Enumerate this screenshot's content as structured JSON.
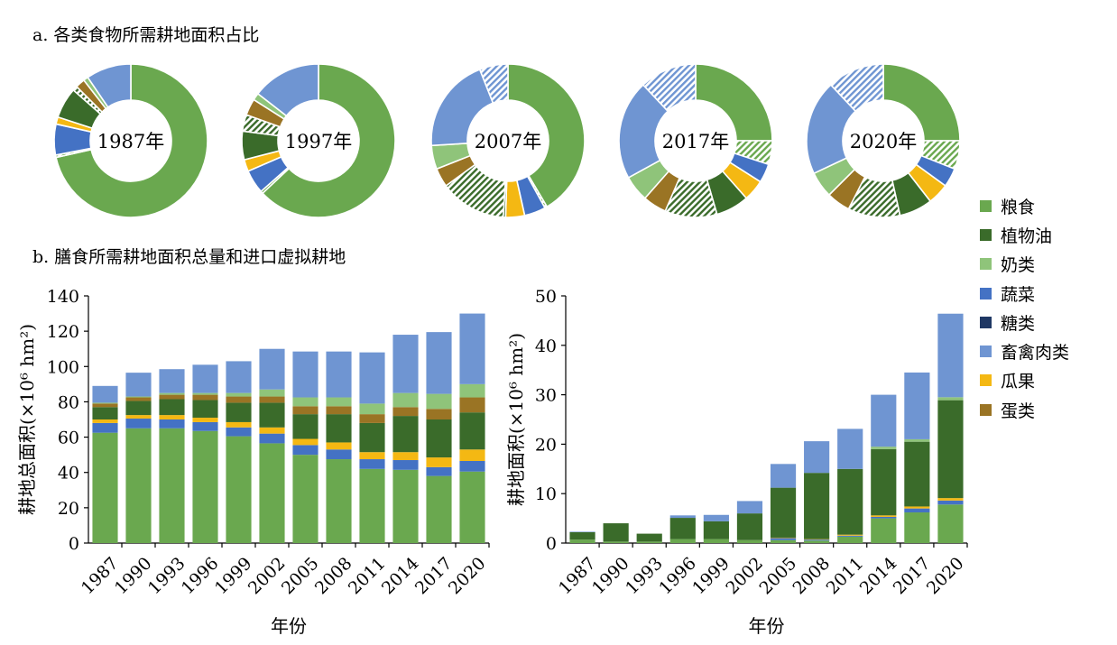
{
  "panel_a": {
    "title": "a. 各类食物所需耕地面积占比"
  },
  "panel_b": {
    "title": "b. 膳食所需耕地面积总量和进口虚拟耕地"
  },
  "legend": [
    {
      "name": "粮食",
      "color": "#6aa84f"
    },
    {
      "name": "植物油",
      "color": "#3a6b2a"
    },
    {
      "name": "奶类",
      "color": "#8fc47a"
    },
    {
      "name": "蔬菜",
      "color": "#4472c4"
    },
    {
      "name": "糖类",
      "color": "#1f3864"
    },
    {
      "name": "畜禽肉类",
      "color": "#6f95d2"
    },
    {
      "name": "瓜果",
      "color": "#f4b813"
    },
    {
      "name": "蛋类",
      "color": "#9a7424"
    }
  ],
  "chart_data": [
    {
      "type": "pie",
      "subtype": "donut",
      "start": "top",
      "direction": "clockwise",
      "note": "hatched segments = imported virtual cropland",
      "donuts": [
        {
          "label": "1987年",
          "segments": [
            {
              "category": "粮食",
              "value": 71.5
            },
            {
              "category": "粮食",
              "value": 0.5,
              "hatched": true
            },
            {
              "category": "蔬菜",
              "value": 6.5
            },
            {
              "category": "瓜果",
              "value": 1.5
            },
            {
              "category": "植物油",
              "value": 6.5
            },
            {
              "category": "植物油",
              "value": 1,
              "hatched": true
            },
            {
              "category": "蛋类",
              "value": 2
            },
            {
              "category": "奶类",
              "value": 1
            },
            {
              "category": "畜禽肉类",
              "value": 9.5
            }
          ]
        },
        {
          "label": "1997年",
          "segments": [
            {
              "category": "粮食",
              "value": 63
            },
            {
              "category": "粮食",
              "value": 0.5,
              "hatched": true
            },
            {
              "category": "蔬菜",
              "value": 5
            },
            {
              "category": "瓜果",
              "value": 2.5
            },
            {
              "category": "植物油",
              "value": 6
            },
            {
              "category": "植物油",
              "value": 3.5,
              "hatched": true
            },
            {
              "category": "蛋类",
              "value": 3.5
            },
            {
              "category": "奶类",
              "value": 1.5
            },
            {
              "category": "畜禽肉类",
              "value": 14.5
            }
          ]
        },
        {
          "label": "2007年",
          "segments": [
            {
              "category": "粮食",
              "value": 41.5
            },
            {
              "category": "粮食",
              "value": 0.5,
              "hatched": true
            },
            {
              "category": "蔬菜",
              "value": 4.5
            },
            {
              "category": "瓜果",
              "value": 4
            },
            {
              "category": "植物油",
              "value": 0.5
            },
            {
              "category": "植物油",
              "value": 14,
              "hatched": true
            },
            {
              "category": "蛋类",
              "value": 4
            },
            {
              "category": "奶类",
              "value": 5
            },
            {
              "category": "畜禽肉类",
              "value": 20
            },
            {
              "category": "畜禽肉类",
              "value": 6,
              "hatched": true
            }
          ]
        },
        {
          "label": "2017年",
          "segments": [
            {
              "category": "粮食",
              "value": 25
            },
            {
              "category": "粮食",
              "value": 5,
              "hatched": true
            },
            {
              "category": "蔬菜",
              "value": 4
            },
            {
              "category": "瓜果",
              "value": 4.5
            },
            {
              "category": "植物油",
              "value": 7
            },
            {
              "category": "植物油",
              "value": 11,
              "hatched": true
            },
            {
              "category": "蛋类",
              "value": 5
            },
            {
              "category": "奶类",
              "value": 5.5
            },
            {
              "category": "畜禽肉类",
              "value": 21
            },
            {
              "category": "畜禽肉类",
              "value": 12,
              "hatched": true
            }
          ]
        },
        {
          "label": "2020年",
          "segments": [
            {
              "category": "粮食",
              "value": 25
            },
            {
              "category": "粮食",
              "value": 6,
              "hatched": true
            },
            {
              "category": "蔬菜",
              "value": 4
            },
            {
              "category": "瓜果",
              "value": 4.5
            },
            {
              "category": "植物油",
              "value": 7
            },
            {
              "category": "植物油",
              "value": 11,
              "hatched": true
            },
            {
              "category": "蛋类",
              "value": 5
            },
            {
              "category": "奶类",
              "value": 5.5
            },
            {
              "category": "畜禽肉类",
              "value": 20
            },
            {
              "category": "畜禽肉类",
              "value": 12,
              "hatched": true
            }
          ]
        }
      ]
    },
    {
      "type": "bar",
      "stacked": true,
      "xlabel": "年份",
      "ylabel": "耕地总面积(×10⁶ hm²)",
      "ylim": [
        0,
        140
      ],
      "yticks": [
        0,
        20,
        40,
        60,
        80,
        100,
        120,
        140
      ],
      "categories": [
        "1987",
        "1990",
        "1993",
        "1996",
        "1999",
        "2002",
        "2005",
        "2008",
        "2011",
        "2014",
        "2017",
        "2020"
      ],
      "series": [
        {
          "name": "粮食",
          "values": [
            62.5,
            65,
            65,
            63.5,
            60.5,
            56.5,
            50,
            47.5,
            42,
            41.5,
            38,
            40.5
          ]
        },
        {
          "name": "蔬菜",
          "values": [
            5.5,
            5.5,
            5,
            5,
            5,
            5.5,
            5.5,
            5.5,
            5.5,
            5.5,
            5,
            6
          ]
        },
        {
          "name": "瓜果",
          "values": [
            2,
            2,
            2.5,
            2.5,
            3,
            3.5,
            3.5,
            4,
            4,
            4.5,
            5.5,
            6.5
          ]
        },
        {
          "name": "植物油",
          "values": [
            7,
            8,
            9,
            10,
            11,
            14,
            14,
            16,
            16.5,
            20.5,
            21.5,
            21
          ]
        },
        {
          "name": "蛋类",
          "values": [
            2,
            2,
            2.5,
            3,
            3.5,
            3.5,
            4.5,
            4.5,
            5,
            5,
            6,
            8.5
          ]
        },
        {
          "name": "奶类",
          "values": [
            0.5,
            0.5,
            1,
            1,
            2,
            4,
            5,
            5,
            6,
            8,
            8.5,
            7.5
          ]
        },
        {
          "name": "畜禽肉类",
          "values": [
            9.5,
            13.5,
            13.5,
            16,
            18,
            23,
            26,
            26,
            29,
            33,
            35,
            40
          ]
        }
      ]
    },
    {
      "type": "bar",
      "stacked": true,
      "xlabel": "年份",
      "ylabel": "耕地面积(×10⁶ hm²)",
      "ylim": [
        0,
        50
      ],
      "yticks": [
        0,
        10,
        20,
        30,
        40,
        50
      ],
      "categories": [
        "1987",
        "1990",
        "1993",
        "1996",
        "1999",
        "2002",
        "2005",
        "2008",
        "2011",
        "2014",
        "2017",
        "2020"
      ],
      "series": [
        {
          "name": "粮食",
          "values": [
            0.7,
            0.3,
            0.3,
            0.8,
            0.8,
            0.6,
            0.6,
            0.5,
            1.3,
            5,
            6.2,
            7.8
          ]
        },
        {
          "name": "蔬菜",
          "values": [
            0,
            0,
            0,
            0,
            0,
            0,
            0.4,
            0.2,
            0.2,
            0.3,
            0.8,
            0.8
          ]
        },
        {
          "name": "瓜果",
          "values": [
            0,
            0,
            0,
            0,
            0,
            0,
            0.1,
            0.1,
            0.2,
            0.3,
            0.4,
            0.5
          ]
        },
        {
          "name": "植物油",
          "values": [
            1.5,
            3.7,
            1.6,
            4.3,
            3.6,
            5.4,
            10.1,
            13.4,
            13.3,
            13.4,
            13.1,
            19.8
          ]
        },
        {
          "name": "蛋类",
          "values": [
            0,
            0,
            0,
            0,
            0,
            0,
            0,
            0,
            0,
            0,
            0,
            0
          ]
        },
        {
          "name": "奶类",
          "values": [
            0,
            0,
            0,
            0,
            0,
            0,
            0,
            0,
            0,
            0.5,
            0.5,
            0.6
          ]
        },
        {
          "name": "畜禽肉类",
          "values": [
            0.1,
            0,
            0,
            0.5,
            1.3,
            2.5,
            4.8,
            6.4,
            8.1,
            10.5,
            13.5,
            16.9
          ]
        }
      ]
    }
  ]
}
